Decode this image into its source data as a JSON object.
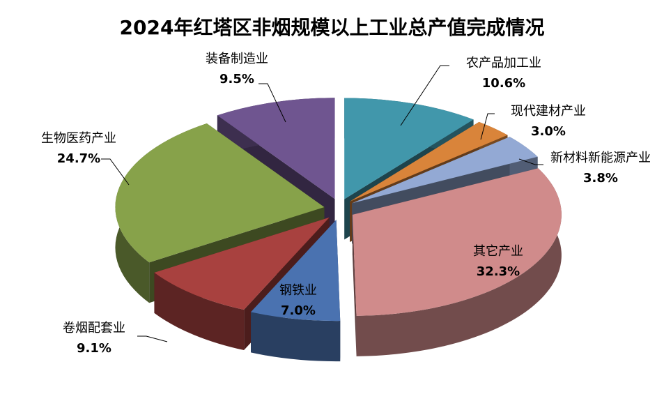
{
  "chart_data": {
    "type": "pie",
    "title": "2024年红塔区非烟规模以上工业总产值完成情况",
    "categories": [
      "农产品加工业",
      "现代建材产业",
      "新材料新能源产业",
      "其它产业",
      "钢铁业",
      "卷烟配套业",
      "生物医药产业",
      "装备制造业"
    ],
    "values": [
      10.6,
      3.0,
      3.8,
      32.3,
      7.0,
      9.1,
      24.7,
      9.5
    ],
    "value_labels": [
      "10.6%",
      "3.0%",
      "3.8%",
      "32.3%",
      "7.0%",
      "9.1%",
      "24.7%",
      "9.5%"
    ],
    "colors": [
      "#4197ab",
      "#d9843a",
      "#93a9d4",
      "#d08b8b",
      "#4a72b0",
      "#a8413f",
      "#87a24a",
      "#6f5590"
    ]
  }
}
